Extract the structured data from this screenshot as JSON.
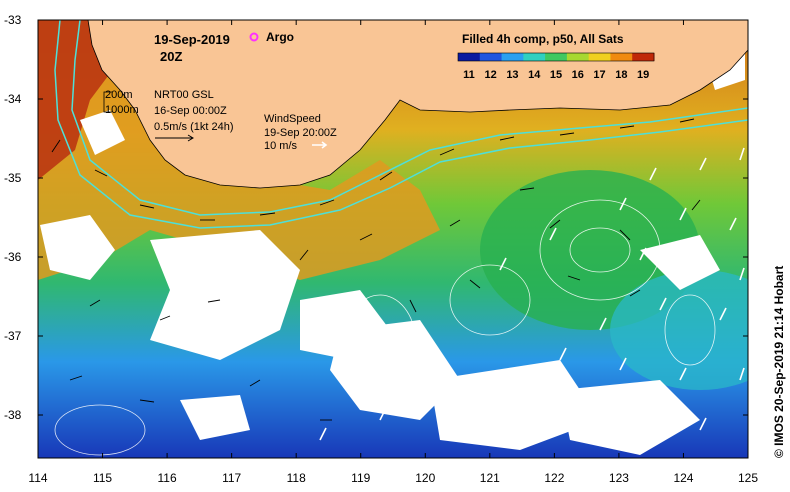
{
  "map": {
    "title_date": "19-Sep-2019",
    "title_hour": "20Z",
    "argo_label": "Argo",
    "colorbar_title": "Filled 4h comp, p50, All Sats",
    "colorbar_ticks": [
      "11",
      "12",
      "13",
      "14",
      "15",
      "16",
      "17",
      "18",
      "19"
    ],
    "colorbar_colors": [
      "#0a1aa0",
      "#1f55e0",
      "#2aa0f0",
      "#30d0c0",
      "#40c860",
      "#a8d830",
      "#f0d020",
      "#f08a10",
      "#c02808"
    ],
    "depth_label_1": "200m",
    "depth_label_2": "1000m",
    "current_label_1": "NRT00 GSL",
    "current_label_2": "16-Sep 00:00Z",
    "current_label_3": "0.5m/s (1kt 24h)",
    "wind_label_1": "WindSpeed",
    "wind_label_2": "19-Sep 20:00Z",
    "wind_label_3": "10 m/s",
    "credit": "© IMOS 20-Sep-2019 21:14 Hobart",
    "y_ticks": [
      "-33",
      "-34",
      "-35",
      "-36",
      "-37",
      "-38"
    ],
    "x_ticks": [
      "114",
      "115",
      "116",
      "117",
      "118",
      "119",
      "120",
      "121",
      "122",
      "123",
      "124",
      "125"
    ],
    "colors": {
      "land": "#f9c595",
      "frame": "#000000",
      "isobath": "#4ee0d8",
      "argo": "#ff30ff"
    }
  }
}
